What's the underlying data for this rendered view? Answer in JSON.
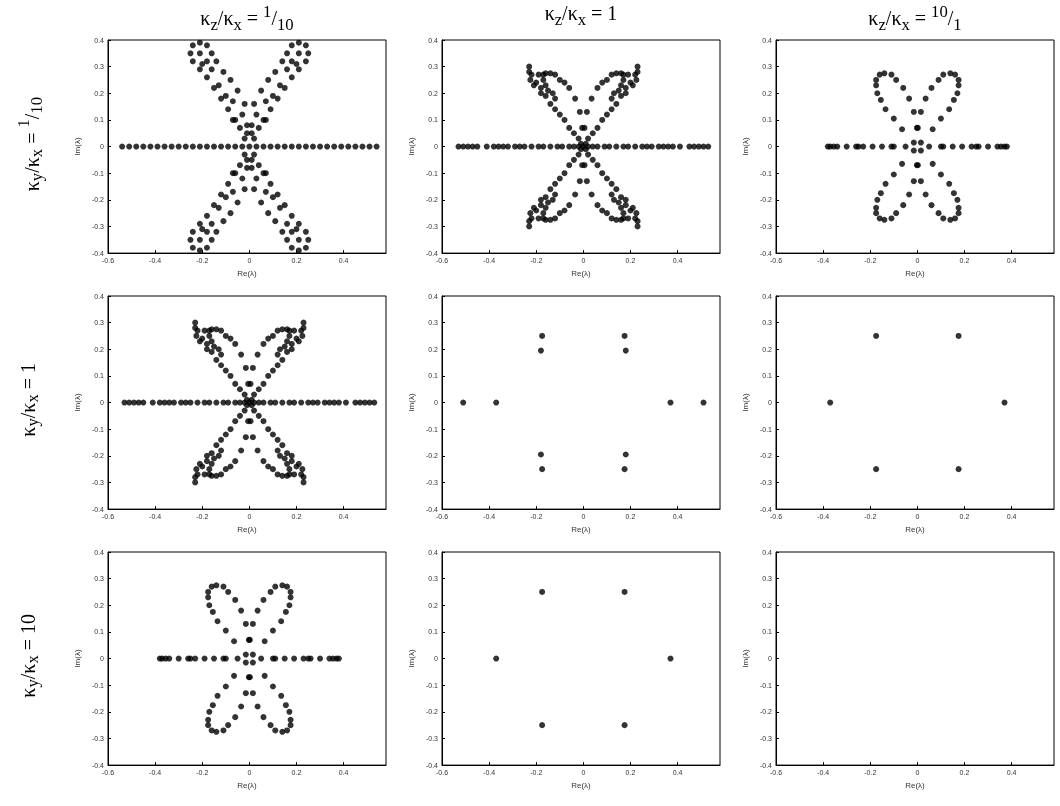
{
  "chart_data": [
    {
      "type": "scatter",
      "title": "κ$_{z}$/κ$_{x}$ = $^{1}$/$_{10}$",
      "annotations": [
        "κ$_{y}$/κ$_{x}$ = $^{1}$/$_{10}$"
      ],
      "xlabel": "Re(λ)",
      "ylabel": "Im(λ)",
      "color": "#000000",
      "marker": "circle",
      "xlim": [
        -0.6,
        0.58
      ],
      "ylim": [
        -0.4,
        0.4
      ],
      "xticks": [
        -0.6,
        -0.4,
        -0.2,
        0,
        0.2,
        0.4
      ],
      "yticks": [
        -0.4,
        -0.3,
        -0.2,
        -0.1,
        0,
        0.1,
        0.2,
        0.3,
        0.4
      ],
      "x": [
        0.02,
        0.04,
        0.07,
        0.09,
        0.12,
        0.15,
        0.18,
        0.21,
        0.24,
        0.25,
        0.24,
        0.21,
        0.18,
        0.16,
        0.14,
        0.11,
        0.08,
        0.05,
        0.02,
        0.01,
        0.01,
        0.03,
        0.06,
        0.18,
        0.21,
        0.13,
        0.1,
        0.16,
        0.2,
        0.07,
        -0.02,
        -0.04,
        -0.07,
        -0.09,
        -0.12,
        -0.15,
        -0.18,
        -0.21,
        -0.24,
        -0.25,
        -0.24,
        -0.21,
        -0.18,
        -0.16,
        -0.14,
        -0.11,
        -0.08,
        -0.05,
        -0.02,
        -0.01,
        -0.01,
        -0.03,
        -0.06,
        -0.18,
        -0.21,
        -0.13,
        -0.1,
        -0.16,
        -0.2,
        -0.07,
        0.02,
        0.04,
        0.07,
        0.09,
        0.12,
        0.15,
        0.18,
        0.21,
        0.24,
        0.25,
        0.24,
        0.21,
        0.18,
        0.16,
        0.14,
        0.11,
        0.08,
        0.05,
        0.02,
        0.01,
        0.01,
        0.03,
        0.06,
        0.18,
        0.21,
        0.13,
        0.1,
        0.16,
        0.2,
        0.07,
        -0.02,
        -0.04,
        -0.07,
        -0.09,
        -0.12,
        -0.15,
        -0.18,
        -0.21,
        -0.24,
        -0.25,
        -0.24,
        -0.21,
        -0.18,
        -0.16,
        -0.14,
        -0.11,
        -0.08,
        -0.05,
        -0.02,
        -0.01,
        -0.01,
        -0.03,
        -0.06,
        -0.18,
        -0.21,
        -0.13,
        -0.1,
        -0.16,
        -0.2,
        -0.07,
        -0.54,
        -0.51,
        -0.48,
        -0.45,
        -0.42,
        -0.39,
        -0.36,
        -0.33,
        -0.3,
        -0.27,
        -0.24,
        -0.21,
        -0.18,
        -0.15,
        -0.12,
        -0.09,
        -0.06,
        -0.03,
        0,
        0.03,
        0.06,
        0.09,
        0.12,
        0.15,
        0.18,
        0.21,
        0.24,
        0.27,
        0.3,
        0.33,
        0.36,
        0.39,
        0.42,
        0.45,
        0.48,
        0.51,
        0.54
      ],
      "values": [
        0.03,
        0.07,
        0.1,
        0.14,
        0.18,
        0.22,
        0.26,
        0.29,
        0.32,
        0.35,
        0.38,
        0.39,
        0.38,
        0.35,
        0.32,
        0.28,
        0.25,
        0.21,
        0.16,
        0.05,
        0.08,
        0.12,
        0.1,
        0.32,
        0.35,
        0.23,
        0.19,
        0.29,
        0.31,
        0.17,
        0.03,
        0.07,
        0.1,
        0.14,
        0.18,
        0.22,
        0.26,
        0.29,
        0.32,
        0.35,
        0.38,
        0.39,
        0.38,
        0.35,
        0.32,
        0.28,
        0.25,
        0.21,
        0.16,
        0.05,
        0.08,
        0.12,
        0.1,
        0.32,
        0.35,
        0.23,
        0.19,
        0.29,
        0.31,
        0.17,
        -0.03,
        -0.07,
        -0.1,
        -0.14,
        -0.18,
        -0.22,
        -0.26,
        -0.29,
        -0.32,
        -0.35,
        -0.38,
        -0.39,
        -0.38,
        -0.35,
        -0.32,
        -0.28,
        -0.25,
        -0.21,
        -0.16,
        -0.05,
        -0.08,
        -0.12,
        -0.1,
        -0.32,
        -0.35,
        -0.23,
        -0.19,
        -0.29,
        -0.31,
        -0.17,
        -0.03,
        -0.07,
        -0.1,
        -0.14,
        -0.18,
        -0.22,
        -0.26,
        -0.29,
        -0.32,
        -0.35,
        -0.38,
        -0.39,
        -0.38,
        -0.35,
        -0.32,
        -0.28,
        -0.25,
        -0.21,
        -0.16,
        -0.05,
        -0.08,
        -0.12,
        -0.1,
        -0.32,
        -0.35,
        -0.23,
        -0.19,
        -0.29,
        -0.31,
        -0.17,
        0,
        0,
        0,
        0,
        0,
        0,
        0,
        0,
        0,
        0,
        0,
        0,
        0,
        0,
        0,
        0,
        0,
        0,
        0,
        0,
        0,
        0,
        0,
        0,
        0,
        0,
        0,
        0,
        0,
        0,
        0,
        0,
        0,
        0,
        0,
        0,
        0
      ]
    },
    {
      "type": "scatter",
      "title": "κ$_{z}$/κ$_{x}$ = 1",
      "xlabel": "Re(λ)",
      "ylabel": "Im(λ)",
      "color": "#000000",
      "marker": "circle",
      "xlim": [
        -0.6,
        0.58
      ],
      "ylim": [
        -0.4,
        0.4
      ],
      "xticks": [
        -0.6,
        -0.4,
        -0.2,
        0,
        0.2,
        0.4
      ],
      "yticks": [
        -0.4,
        -0.3,
        -0.2,
        -0.1,
        0,
        0.1,
        0.2,
        0.3,
        0.4
      ],
      "x": [
        0.01,
        0.02,
        0.04,
        0.06,
        0.08,
        0.1,
        0.12,
        0.14,
        0.16,
        0.18,
        0.2,
        0.22,
        0.23,
        0.23,
        0.225,
        0.21,
        0.19,
        0.17,
        0.16,
        0.14,
        0.12,
        0.1,
        0.08,
        0.06,
        0.035,
        0.015,
        0.005,
        0.12,
        0.13,
        0.15,
        0.16,
        0.17,
        0.18,
        -0.01,
        -0.02,
        -0.04,
        -0.06,
        -0.08,
        -0.1,
        -0.12,
        -0.14,
        -0.16,
        -0.18,
        -0.2,
        -0.22,
        -0.23,
        -0.23,
        -0.225,
        -0.21,
        -0.19,
        -0.17,
        -0.16,
        -0.14,
        -0.12,
        -0.1,
        -0.08,
        -0.06,
        -0.035,
        -0.015,
        -0.005,
        -0.12,
        -0.13,
        -0.15,
        -0.16,
        -0.17,
        -0.18,
        0.01,
        0.02,
        0.04,
        0.06,
        0.08,
        0.1,
        0.12,
        0.14,
        0.16,
        0.18,
        0.2,
        0.22,
        0.23,
        0.23,
        0.225,
        0.21,
        0.19,
        0.17,
        0.16,
        0.14,
        0.12,
        0.1,
        0.08,
        0.06,
        0.035,
        0.015,
        0.005,
        0.12,
        0.13,
        0.15,
        0.16,
        0.17,
        0.18,
        -0.01,
        -0.02,
        -0.04,
        -0.06,
        -0.08,
        -0.1,
        -0.12,
        -0.14,
        -0.16,
        -0.18,
        -0.2,
        -0.22,
        -0.23,
        -0.23,
        -0.225,
        -0.21,
        -0.19,
        -0.17,
        -0.16,
        -0.14,
        -0.12,
        -0.1,
        -0.08,
        -0.06,
        -0.035,
        -0.015,
        -0.005,
        -0.12,
        -0.13,
        -0.15,
        -0.16,
        -0.17,
        -0.18,
        -0.53,
        -0.51,
        -0.49,
        -0.47,
        -0.45,
        -0.41,
        -0.38,
        -0.36,
        -0.34,
        -0.32,
        -0.29,
        -0.27,
        -0.25,
        -0.22,
        -0.19,
        -0.17,
        -0.14,
        -0.11,
        -0.09,
        -0.06,
        -0.04,
        -0.02,
        0,
        0.02,
        0.04,
        0.06,
        0.09,
        0.11,
        0.14,
        0.17,
        0.19,
        0.22,
        0.25,
        0.27,
        0.29,
        0.32,
        0.34,
        0.36,
        0.38,
        0.41,
        0.45,
        0.47,
        0.49,
        0.51,
        0.53
      ],
      "values": [
        0.01,
        0.03,
        0.05,
        0.07,
        0.1,
        0.12,
        0.14,
        0.16,
        0.19,
        0.22,
        0.24,
        0.27,
        0.3,
        0.28,
        0.25,
        0.23,
        0.27,
        0.27,
        0.275,
        0.275,
        0.27,
        0.25,
        0.24,
        0.22,
        0.18,
        0.13,
        0.07,
        0.18,
        0.2,
        0.21,
        0.23,
        0.25,
        0.2,
        0.01,
        0.03,
        0.05,
        0.07,
        0.1,
        0.12,
        0.14,
        0.16,
        0.19,
        0.22,
        0.24,
        0.27,
        0.3,
        0.28,
        0.25,
        0.23,
        0.27,
        0.27,
        0.275,
        0.275,
        0.27,
        0.25,
        0.24,
        0.22,
        0.18,
        0.13,
        0.07,
        0.18,
        0.2,
        0.21,
        0.23,
        0.25,
        0.2,
        -0.01,
        -0.03,
        -0.05,
        -0.07,
        -0.1,
        -0.12,
        -0.14,
        -0.16,
        -0.19,
        -0.22,
        -0.24,
        -0.27,
        -0.3,
        -0.28,
        -0.25,
        -0.23,
        -0.27,
        -0.27,
        -0.275,
        -0.275,
        -0.27,
        -0.25,
        -0.24,
        -0.22,
        -0.18,
        -0.13,
        -0.07,
        -0.18,
        -0.2,
        -0.21,
        -0.23,
        -0.25,
        -0.2,
        -0.01,
        -0.03,
        -0.05,
        -0.07,
        -0.1,
        -0.12,
        -0.14,
        -0.16,
        -0.19,
        -0.22,
        -0.24,
        -0.27,
        -0.3,
        -0.28,
        -0.25,
        -0.23,
        -0.27,
        -0.27,
        -0.275,
        -0.275,
        -0.27,
        -0.25,
        -0.24,
        -0.22,
        -0.18,
        -0.13,
        -0.07,
        -0.18,
        -0.2,
        -0.21,
        -0.23,
        -0.25,
        -0.2,
        0,
        0,
        0,
        0,
        0,
        0,
        0,
        0,
        0,
        0,
        0,
        0,
        0,
        0,
        0,
        0,
        0,
        0,
        0,
        0,
        0,
        0,
        0,
        0,
        0,
        0,
        0,
        0,
        0,
        0,
        0,
        0,
        0,
        0,
        0,
        0,
        0,
        0,
        0,
        0,
        0,
        0,
        0,
        0,
        0
      ]
    },
    {
      "type": "scatter",
      "title": "κ$_{z}$/κ$_{x}$ = $^{10}$/$_{1}$",
      "xlabel": "Re(λ)",
      "ylabel": "Im(λ)",
      "color": "#000000",
      "marker": "circle",
      "xlim": [
        -0.6,
        0.58
      ],
      "ylim": [
        -0.4,
        0.4
      ],
      "xticks": [
        -0.6,
        -0.4,
        -0.2,
        0,
        0.2,
        0.4
      ],
      "yticks": [
        -0.4,
        -0.3,
        -0.2,
        -0.1,
        0,
        0.1,
        0.2,
        0.3,
        0.4
      ],
      "x": [
        0.015,
        0.002,
        0.015,
        0.035,
        0.06,
        0.09,
        0.11,
        0.14,
        0.16,
        0.175,
        0.175,
        0.17,
        0.155,
        0.135,
        0.1,
        0.065,
        -0.015,
        -0.002,
        -0.015,
        -0.035,
        -0.06,
        -0.09,
        -0.11,
        -0.14,
        -0.16,
        -0.175,
        -0.175,
        -0.17,
        -0.155,
        -0.135,
        -0.1,
        -0.065,
        0.015,
        0.002,
        0.015,
        0.035,
        0.06,
        0.09,
        0.11,
        0.14,
        0.16,
        0.175,
        0.175,
        0.17,
        0.155,
        0.135,
        0.1,
        0.065,
        -0.015,
        -0.002,
        -0.015,
        -0.035,
        -0.06,
        -0.09,
        -0.11,
        -0.14,
        -0.16,
        -0.175,
        -0.175,
        -0.17,
        -0.155,
        -0.135,
        -0.1,
        -0.065,
        -0.38,
        -0.37,
        -0.355,
        -0.34,
        -0.3,
        -0.26,
        -0.25,
        -0.23,
        -0.19,
        -0.15,
        -0.11,
        -0.1,
        -0.05,
        0.05,
        0.1,
        0.11,
        0.15,
        0.19,
        0.23,
        0.25,
        0.26,
        0.3,
        0.34,
        0.355,
        0.37,
        0.38
      ],
      "values": [
        0.015,
        0.07,
        0.13,
        0.18,
        0.22,
        0.25,
        0.27,
        0.275,
        0.27,
        0.25,
        0.23,
        0.2,
        0.175,
        0.14,
        0.105,
        0.065,
        0.015,
        0.07,
        0.13,
        0.18,
        0.22,
        0.25,
        0.27,
        0.275,
        0.27,
        0.25,
        0.23,
        0.2,
        0.175,
        0.14,
        0.105,
        0.065,
        -0.015,
        -0.07,
        -0.13,
        -0.18,
        -0.22,
        -0.25,
        -0.27,
        -0.275,
        -0.27,
        -0.25,
        -0.23,
        -0.2,
        -0.175,
        -0.14,
        -0.105,
        -0.065,
        -0.015,
        -0.07,
        -0.13,
        -0.18,
        -0.22,
        -0.25,
        -0.27,
        -0.275,
        -0.27,
        -0.25,
        -0.23,
        -0.2,
        -0.175,
        -0.14,
        -0.105,
        -0.065,
        0,
        0,
        0,
        0,
        0,
        0,
        0,
        0,
        0,
        0,
        0,
        0,
        0,
        0,
        0,
        0,
        0,
        0,
        0,
        0,
        0,
        0,
        0,
        0,
        0,
        0
      ]
    },
    {
      "type": "scatter",
      "annotations": [
        "κ$_{y}$/κ$_{x}$ = 1"
      ],
      "xlabel": "Re(λ)",
      "ylabel": "Im(λ)",
      "color": "#000000",
      "marker": "circle",
      "xlim": [
        -0.6,
        0.58
      ],
      "ylim": [
        -0.4,
        0.4
      ],
      "xticks": [
        -0.6,
        -0.4,
        -0.2,
        0,
        0.2,
        0.4
      ],
      "yticks": [
        -0.4,
        -0.3,
        -0.2,
        -0.1,
        0,
        0.1,
        0.2,
        0.3,
        0.4
      ],
      "x": [
        0.01,
        0.02,
        0.04,
        0.06,
        0.08,
        0.1,
        0.12,
        0.14,
        0.16,
        0.18,
        0.2,
        0.22,
        0.23,
        0.23,
        0.225,
        0.21,
        0.19,
        0.17,
        0.16,
        0.14,
        0.12,
        0.1,
        0.08,
        0.06,
        0.035,
        0.015,
        0.005,
        0.12,
        0.13,
        0.15,
        0.16,
        0.17,
        0.18,
        -0.01,
        -0.02,
        -0.04,
        -0.06,
        -0.08,
        -0.1,
        -0.12,
        -0.14,
        -0.16,
        -0.18,
        -0.2,
        -0.22,
        -0.23,
        -0.23,
        -0.225,
        -0.21,
        -0.19,
        -0.17,
        -0.16,
        -0.14,
        -0.12,
        -0.1,
        -0.08,
        -0.06,
        -0.035,
        -0.015,
        -0.005,
        -0.12,
        -0.13,
        -0.15,
        -0.16,
        -0.17,
        -0.18,
        0.01,
        0.02,
        0.04,
        0.06,
        0.08,
        0.1,
        0.12,
        0.14,
        0.16,
        0.18,
        0.2,
        0.22,
        0.23,
        0.23,
        0.225,
        0.21,
        0.19,
        0.17,
        0.16,
        0.14,
        0.12,
        0.1,
        0.08,
        0.06,
        0.035,
        0.015,
        0.005,
        0.12,
        0.13,
        0.15,
        0.16,
        0.17,
        0.18,
        -0.01,
        -0.02,
        -0.04,
        -0.06,
        -0.08,
        -0.1,
        -0.12,
        -0.14,
        -0.16,
        -0.18,
        -0.2,
        -0.22,
        -0.23,
        -0.23,
        -0.225,
        -0.21,
        -0.19,
        -0.17,
        -0.16,
        -0.14,
        -0.12,
        -0.1,
        -0.08,
        -0.06,
        -0.035,
        -0.015,
        -0.005,
        -0.12,
        -0.13,
        -0.15,
        -0.16,
        -0.17,
        -0.18,
        -0.53,
        -0.51,
        -0.49,
        -0.47,
        -0.45,
        -0.41,
        -0.38,
        -0.36,
        -0.34,
        -0.32,
        -0.29,
        -0.27,
        -0.25,
        -0.22,
        -0.19,
        -0.17,
        -0.14,
        -0.11,
        -0.09,
        -0.06,
        -0.04,
        -0.02,
        0,
        0.02,
        0.04,
        0.06,
        0.09,
        0.11,
        0.14,
        0.17,
        0.19,
        0.22,
        0.25,
        0.27,
        0.29,
        0.32,
        0.34,
        0.36,
        0.38,
        0.41,
        0.45,
        0.47,
        0.49,
        0.51,
        0.53
      ],
      "values": [
        0.01,
        0.03,
        0.05,
        0.07,
        0.1,
        0.12,
        0.14,
        0.16,
        0.19,
        0.22,
        0.24,
        0.27,
        0.3,
        0.28,
        0.25,
        0.23,
        0.27,
        0.27,
        0.275,
        0.275,
        0.27,
        0.25,
        0.24,
        0.22,
        0.18,
        0.13,
        0.07,
        0.18,
        0.2,
        0.21,
        0.23,
        0.25,
        0.2,
        0.01,
        0.03,
        0.05,
        0.07,
        0.1,
        0.12,
        0.14,
        0.16,
        0.19,
        0.22,
        0.24,
        0.27,
        0.3,
        0.28,
        0.25,
        0.23,
        0.27,
        0.27,
        0.275,
        0.275,
        0.27,
        0.25,
        0.24,
        0.22,
        0.18,
        0.13,
        0.07,
        0.18,
        0.2,
        0.21,
        0.23,
        0.25,
        0.2,
        -0.01,
        -0.03,
        -0.05,
        -0.07,
        -0.1,
        -0.12,
        -0.14,
        -0.16,
        -0.19,
        -0.22,
        -0.24,
        -0.27,
        -0.3,
        -0.28,
        -0.25,
        -0.23,
        -0.27,
        -0.27,
        -0.275,
        -0.275,
        -0.27,
        -0.25,
        -0.24,
        -0.22,
        -0.18,
        -0.13,
        -0.07,
        -0.18,
        -0.2,
        -0.21,
        -0.23,
        -0.25,
        -0.2,
        -0.01,
        -0.03,
        -0.05,
        -0.07,
        -0.1,
        -0.12,
        -0.14,
        -0.16,
        -0.19,
        -0.22,
        -0.24,
        -0.27,
        -0.3,
        -0.28,
        -0.25,
        -0.23,
        -0.27,
        -0.27,
        -0.275,
        -0.275,
        -0.27,
        -0.25,
        -0.24,
        -0.22,
        -0.18,
        -0.13,
        -0.07,
        -0.18,
        -0.2,
        -0.21,
        -0.23,
        -0.25,
        -0.2,
        0,
        0,
        0,
        0,
        0,
        0,
        0,
        0,
        0,
        0,
        0,
        0,
        0,
        0,
        0,
        0,
        0,
        0,
        0,
        0,
        0,
        0,
        0,
        0,
        0,
        0,
        0,
        0,
        0,
        0,
        0,
        0,
        0,
        0,
        0,
        0,
        0,
        0,
        0,
        0,
        0,
        0,
        0,
        0,
        0
      ]
    },
    {
      "type": "scatter",
      "xlabel": "Re(λ)",
      "ylabel": "Im(λ)",
      "color": "#000000",
      "marker": "circle",
      "xlim": [
        -0.6,
        0.58
      ],
      "ylim": [
        -0.4,
        0.4
      ],
      "xticks": [
        -0.6,
        -0.4,
        -0.2,
        0,
        0.2,
        0.4
      ],
      "yticks": [
        -0.4,
        -0.3,
        -0.2,
        -0.1,
        0,
        0.1,
        0.2,
        0.3,
        0.4
      ],
      "x": [
        -0.51,
        -0.37,
        0.37,
        0.51,
        -0.175,
        0.175,
        -0.175,
        0.175,
        -0.18,
        0.18,
        -0.18,
        0.18
      ],
      "values": [
        0,
        0,
        0,
        0,
        0.25,
        0.25,
        -0.25,
        -0.25,
        0.195,
        0.195,
        -0.195,
        -0.195
      ]
    },
    {
      "type": "scatter",
      "xlabel": "Re(λ)",
      "ylabel": "Im(λ)",
      "color": "#000000",
      "marker": "circle",
      "xlim": [
        -0.6,
        0.58
      ],
      "ylim": [
        -0.4,
        0.4
      ],
      "xticks": [
        -0.6,
        -0.4,
        -0.2,
        0,
        0.2,
        0.4
      ],
      "yticks": [
        -0.4,
        -0.3,
        -0.2,
        -0.1,
        0,
        0.1,
        0.2,
        0.3,
        0.4
      ],
      "x": [
        -0.37,
        0.37,
        -0.175,
        0.175,
        -0.175,
        0.175
      ],
      "values": [
        0,
        0,
        0.25,
        0.25,
        -0.25,
        -0.25
      ]
    },
    {
      "type": "scatter",
      "annotations": [
        "κ$_{y}$/κ$_{x}$ = 10"
      ],
      "xlabel": "Re(λ)",
      "ylabel": "Im(λ)",
      "color": "#000000",
      "marker": "circle",
      "xlim": [
        -0.6,
        0.58
      ],
      "ylim": [
        -0.4,
        0.4
      ],
      "xticks": [
        -0.6,
        -0.4,
        -0.2,
        0,
        0.2,
        0.4
      ],
      "yticks": [
        -0.4,
        -0.3,
        -0.2,
        -0.1,
        0,
        0.1,
        0.2,
        0.3,
        0.4
      ],
      "x": [
        0.015,
        0.002,
        0.015,
        0.035,
        0.06,
        0.09,
        0.11,
        0.14,
        0.16,
        0.175,
        0.175,
        0.17,
        0.155,
        0.135,
        0.1,
        0.065,
        -0.015,
        -0.002,
        -0.015,
        -0.035,
        -0.06,
        -0.09,
        -0.11,
        -0.14,
        -0.16,
        -0.175,
        -0.175,
        -0.17,
        -0.155,
        -0.135,
        -0.1,
        -0.065,
        0.015,
        0.002,
        0.015,
        0.035,
        0.06,
        0.09,
        0.11,
        0.14,
        0.16,
        0.175,
        0.175,
        0.17,
        0.155,
        0.135,
        0.1,
        0.065,
        -0.015,
        -0.002,
        -0.015,
        -0.035,
        -0.06,
        -0.09,
        -0.11,
        -0.14,
        -0.16,
        -0.175,
        -0.175,
        -0.17,
        -0.155,
        -0.135,
        -0.1,
        -0.065,
        -0.38,
        -0.37,
        -0.355,
        -0.34,
        -0.3,
        -0.26,
        -0.25,
        -0.23,
        -0.19,
        -0.15,
        -0.11,
        -0.1,
        -0.05,
        0.05,
        0.1,
        0.11,
        0.15,
        0.19,
        0.23,
        0.25,
        0.26,
        0.3,
        0.34,
        0.355,
        0.37,
        0.38
      ],
      "values": [
        0.015,
        0.07,
        0.13,
        0.18,
        0.22,
        0.25,
        0.27,
        0.275,
        0.27,
        0.25,
        0.23,
        0.2,
        0.175,
        0.14,
        0.105,
        0.065,
        0.015,
        0.07,
        0.13,
        0.18,
        0.22,
        0.25,
        0.27,
        0.275,
        0.27,
        0.25,
        0.23,
        0.2,
        0.175,
        0.14,
        0.105,
        0.065,
        -0.015,
        -0.07,
        -0.13,
        -0.18,
        -0.22,
        -0.25,
        -0.27,
        -0.275,
        -0.27,
        -0.25,
        -0.23,
        -0.2,
        -0.175,
        -0.14,
        -0.105,
        -0.065,
        -0.015,
        -0.07,
        -0.13,
        -0.18,
        -0.22,
        -0.25,
        -0.27,
        -0.275,
        -0.27,
        -0.25,
        -0.23,
        -0.2,
        -0.175,
        -0.14,
        -0.105,
        -0.065,
        0,
        0,
        0,
        0,
        0,
        0,
        0,
        0,
        0,
        0,
        0,
        0,
        0,
        0,
        0,
        0,
        0,
        0,
        0,
        0,
        0,
        0,
        0,
        0,
        0,
        0
      ]
    },
    {
      "type": "scatter",
      "xlabel": "Re(λ)",
      "ylabel": "Im(λ)",
      "color": "#000000",
      "marker": "circle",
      "xlim": [
        -0.6,
        0.58
      ],
      "ylim": [
        -0.4,
        0.4
      ],
      "xticks": [
        -0.6,
        -0.4,
        -0.2,
        0,
        0.2,
        0.4
      ],
      "yticks": [
        -0.4,
        -0.3,
        -0.2,
        -0.1,
        0,
        0.1,
        0.2,
        0.3,
        0.4
      ],
      "x": [
        -0.37,
        0.37,
        -0.175,
        0.175,
        -0.175,
        0.175
      ],
      "values": [
        0,
        0,
        0.25,
        0.25,
        -0.25,
        -0.25
      ]
    },
    {
      "type": "scatter",
      "xlabel": "Re(λ)",
      "ylabel": "Im(λ)",
      "color": "#000000",
      "marker": "circle",
      "xlim": [
        -0.6,
        0.58
      ],
      "ylim": [
        -0.4,
        0.4
      ],
      "xticks": [
        -0.6,
        -0.4,
        -0.2,
        0,
        0.2,
        0.4
      ],
      "yticks": [
        -0.4,
        -0.3,
        -0.2,
        -0.1,
        0,
        0.1,
        0.2,
        0.3,
        0.4
      ],
      "grid": false
    }
  ]
}
